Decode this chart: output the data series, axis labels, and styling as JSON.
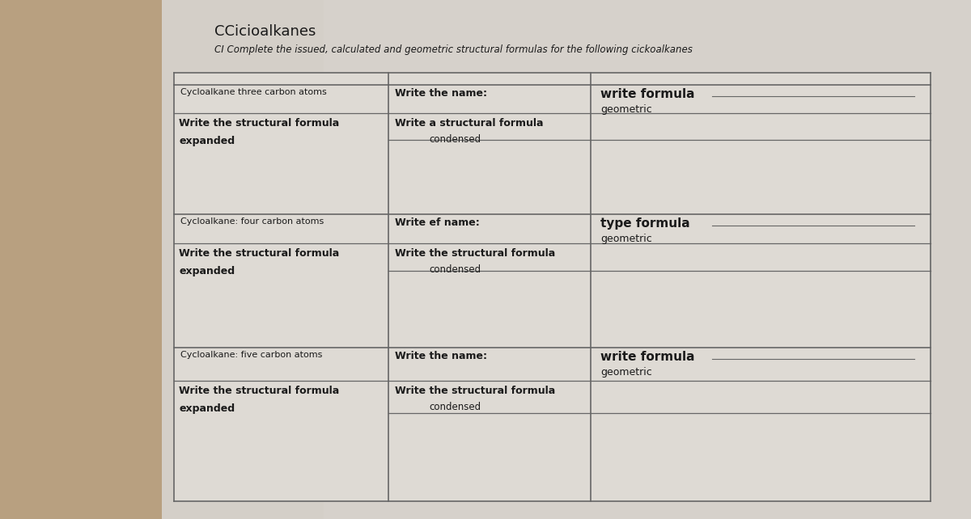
{
  "title": "CCicioalkanes",
  "subtitle": "CI Complete the issued, calculated and geometric structural formulas for the following cickoalkanes",
  "bg_left_color": "#c8b89a",
  "bg_right_color": "#d8d4ce",
  "paper_color": "#e8e6e2",
  "cell_color": "#e4e2de",
  "line_color": "#666666",
  "text_color": "#1a1a1a",
  "rows": [
    {
      "header": "Cycloalkane three carbon atoms",
      "col1_line1": "Write the structural formula",
      "col1_line2": "expanded",
      "col2_name": "Write the name:",
      "col2_formula": "Write a structural formula",
      "col2_condensed": "condensed",
      "col3_formula": "write formula",
      "col3_geometric": "geometric"
    },
    {
      "header": "Cycloalkane: four carbon atoms",
      "col1_line1": "Write the structural formula",
      "col1_line2": "expanded",
      "col2_name": "Write ef name:",
      "col2_formula": "Write the structural formula",
      "col2_condensed": "condensed",
      "col3_formula": "type formula",
      "col3_geometric": "geometric"
    },
    {
      "header": "Cycloalkane: five carbon atoms",
      "col1_line1": "Write the structural formula",
      "col1_line2": "expanded",
      "col2_name": "Write the name:",
      "col2_formula": "Write the structural formula",
      "col2_condensed": "condensed",
      "col3_formula": "write formula",
      "col3_geometric": "geometric"
    }
  ],
  "figsize": [
    12.0,
    6.42
  ],
  "dpi": 100
}
